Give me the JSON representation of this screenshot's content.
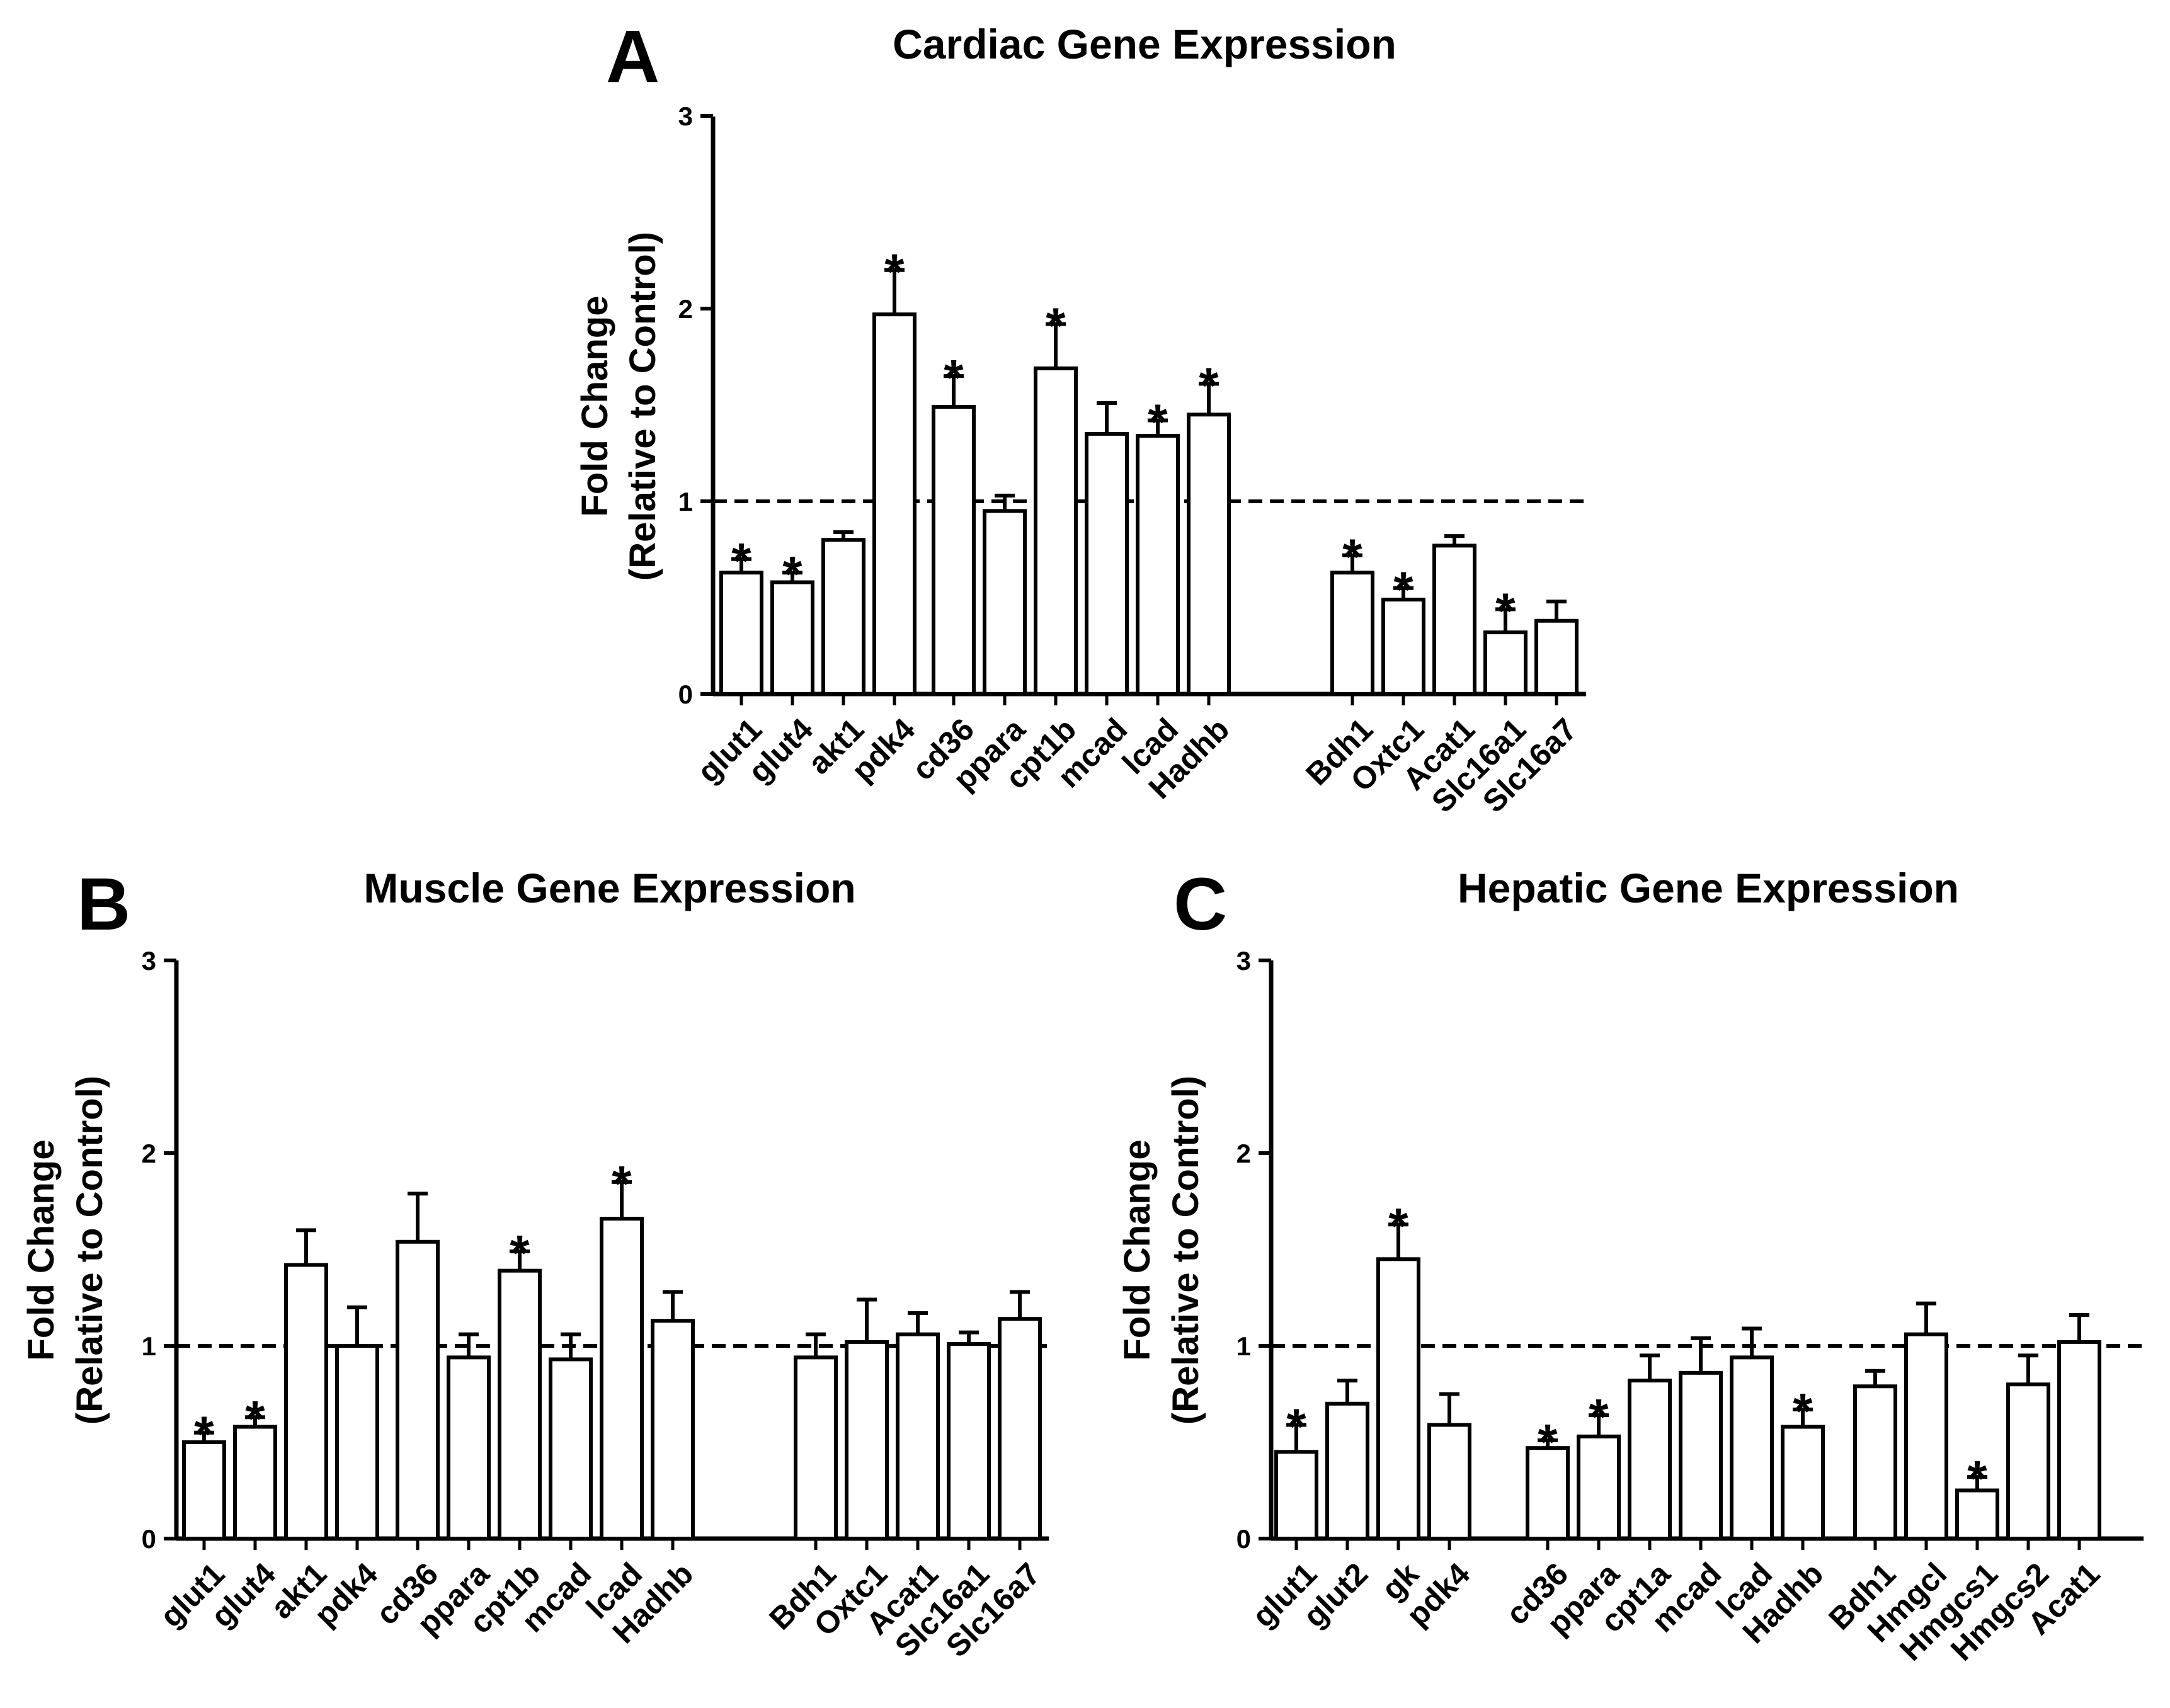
{
  "chart_data": [
    {
      "panel": "A",
      "type": "bar",
      "title": "Cardiac Gene Expression",
      "ylabel_line1": "Fold Change",
      "ylabel_line2": "(Relative to Control)",
      "ylim": [
        0,
        3
      ],
      "yticks": [
        "0",
        "1",
        "2",
        "3"
      ],
      "reference_line": 1,
      "groups": [
        {
          "categories": [
            "glut1",
            "glut4",
            "akt1",
            "pdk4"
          ],
          "values": [
            0.63,
            0.58,
            0.8,
            1.97
          ],
          "errors": [
            0.07,
            0.05,
            0.04,
            0.23
          ],
          "significant": [
            true,
            true,
            false,
            true
          ]
        },
        {
          "categories": [
            "cd36",
            "ppara",
            "cpt1b",
            "mcad",
            "lcad",
            "Hadhb"
          ],
          "values": [
            1.49,
            0.95,
            1.69,
            1.35,
            1.34,
            1.45
          ],
          "errors": [
            0.16,
            0.08,
            0.23,
            0.16,
            0.08,
            0.16
          ],
          "significant": [
            true,
            false,
            true,
            false,
            true,
            true
          ]
        },
        {
          "categories": [
            "Bdh1",
            "Oxtc1",
            "Acat1",
            "Slc16a1",
            "Slc16a7"
          ],
          "values": [
            0.63,
            0.49,
            0.77,
            0.32,
            0.38
          ],
          "errors": [
            0.09,
            0.06,
            0.05,
            0.12,
            0.1
          ],
          "significant": [
            true,
            true,
            false,
            true,
            false
          ]
        }
      ]
    },
    {
      "panel": "B",
      "type": "bar",
      "title": "Muscle Gene Expression",
      "ylabel_line1": "Fold Change",
      "ylabel_line2": "(Relative to Control)",
      "ylim": [
        0,
        3
      ],
      "yticks": [
        "0",
        "1",
        "2",
        "3"
      ],
      "reference_line": 1,
      "groups": [
        {
          "categories": [
            "glut1",
            "glut4",
            "akt1",
            "pdk4"
          ],
          "values": [
            0.5,
            0.58,
            1.42,
            1.0
          ],
          "errors": [
            0.05,
            0.05,
            0.18,
            0.2
          ],
          "significant": [
            true,
            true,
            false,
            false
          ]
        },
        {
          "categories": [
            "cd36",
            "ppara",
            "cpt1b",
            "mcad",
            "lcad",
            "Hadhb"
          ],
          "values": [
            1.54,
            0.94,
            1.39,
            0.93,
            1.66,
            1.13
          ],
          "errors": [
            0.25,
            0.12,
            0.1,
            0.13,
            0.19,
            0.15
          ],
          "significant": [
            false,
            false,
            true,
            false,
            true,
            false
          ]
        },
        {
          "categories": [
            "Bdh1",
            "Oxtc1",
            "Acat1",
            "Slc16a1",
            "Slc16a7"
          ],
          "values": [
            0.94,
            1.02,
            1.06,
            1.01,
            1.14
          ],
          "errors": [
            0.12,
            0.22,
            0.11,
            0.06,
            0.14
          ],
          "significant": [
            false,
            false,
            false,
            false,
            false
          ]
        }
      ]
    },
    {
      "panel": "C",
      "type": "bar",
      "title": "Hepatic Gene Expression",
      "ylabel_line1": "Fold Change",
      "ylabel_line2": "(Relative to Control)",
      "ylim": [
        0,
        3
      ],
      "yticks": [
        "0",
        "1",
        "2",
        "3"
      ],
      "reference_line": 1,
      "groups": [
        {
          "categories": [
            "glut1",
            "glut2",
            "gk",
            "pdk4"
          ],
          "values": [
            0.45,
            0.7,
            1.45,
            0.59
          ],
          "errors": [
            0.14,
            0.12,
            0.18,
            0.16
          ],
          "significant": [
            true,
            false,
            true,
            false
          ]
        },
        {
          "categories": [
            "cd36",
            "ppara",
            "cpt1a",
            "mcad",
            "lcad",
            "Hadhb"
          ],
          "values": [
            0.47,
            0.53,
            0.82,
            0.86,
            0.94,
            0.58
          ],
          "errors": [
            0.04,
            0.11,
            0.13,
            0.18,
            0.15,
            0.09
          ],
          "significant": [
            true,
            true,
            false,
            false,
            false,
            true
          ]
        },
        {
          "categories": [
            "Bdh1",
            "Hmgcl",
            "Hmgcs1",
            "Hmgcs2",
            "Acat1"
          ],
          "values": [
            0.79,
            1.06,
            0.25,
            0.8,
            1.02
          ],
          "errors": [
            0.08,
            0.16,
            0.07,
            0.15,
            0.14
          ],
          "significant": [
            false,
            false,
            true,
            false,
            false
          ]
        }
      ]
    }
  ]
}
